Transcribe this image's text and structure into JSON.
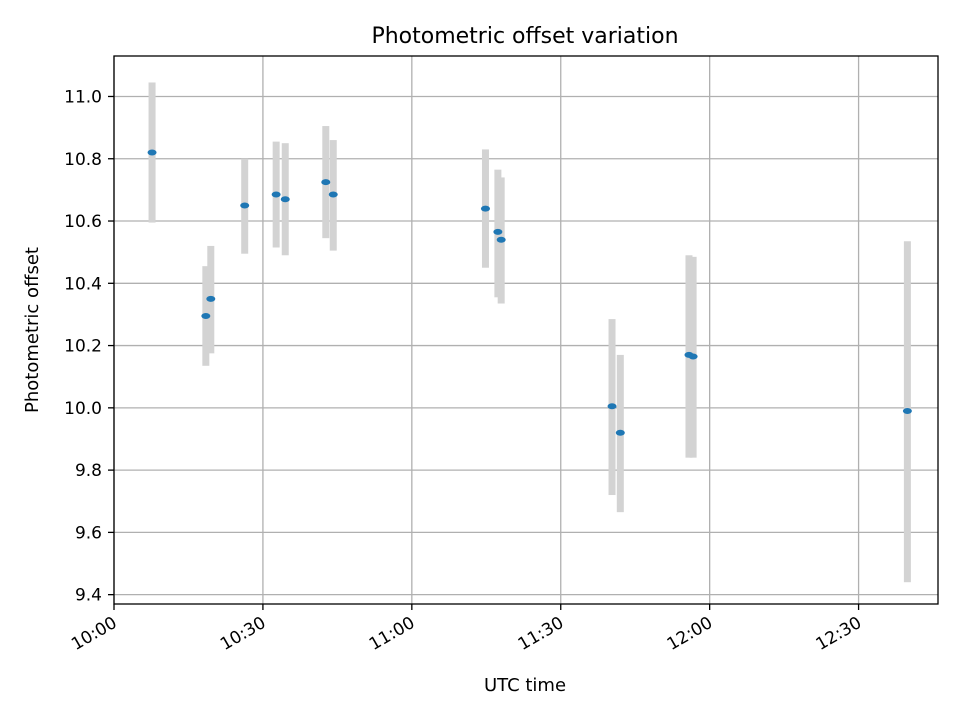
{
  "chart_data": {
    "type": "scatter",
    "title": "Photometric offset variation",
    "xlabel": "UTC time",
    "ylabel": "Photometric offset",
    "x_is_time": true,
    "xlim": [
      "10:00",
      "12:46"
    ],
    "ylim": [
      9.37,
      11.13
    ],
    "x_ticks": [
      "10:00",
      "10:30",
      "11:00",
      "11:30",
      "12:00",
      "12:30"
    ],
    "y_ticks": [
      9.4,
      9.6,
      9.8,
      10.0,
      10.2,
      10.4,
      10.6,
      10.8,
      11.0
    ],
    "grid": true,
    "point_color": "#1f77b4",
    "errorbar_color": "#d3d3d3",
    "points": [
      {
        "t": "10:07:40",
        "y": 10.82,
        "ylo": 10.595,
        "yhi": 11.045
      },
      {
        "t": "10:18:30",
        "y": 10.295,
        "ylo": 10.135,
        "yhi": 10.455
      },
      {
        "t": "10:19:30",
        "y": 10.35,
        "ylo": 10.175,
        "yhi": 10.52
      },
      {
        "t": "10:26:20",
        "y": 10.65,
        "ylo": 10.495,
        "yhi": 10.8
      },
      {
        "t": "10:32:40",
        "y": 10.685,
        "ylo": 10.515,
        "yhi": 10.855
      },
      {
        "t": "10:34:30",
        "y": 10.67,
        "ylo": 10.49,
        "yhi": 10.85
      },
      {
        "t": "10:42:40",
        "y": 10.725,
        "ylo": 10.545,
        "yhi": 10.905
      },
      {
        "t": "10:44:10",
        "y": 10.685,
        "ylo": 10.505,
        "yhi": 10.86
      },
      {
        "t": "11:14:50",
        "y": 10.64,
        "ylo": 10.45,
        "yhi": 10.83
      },
      {
        "t": "11:17:20",
        "y": 10.565,
        "ylo": 10.355,
        "yhi": 10.765
      },
      {
        "t": "11:18:00",
        "y": 10.54,
        "ylo": 10.335,
        "yhi": 10.74
      },
      {
        "t": "11:40:20",
        "y": 10.005,
        "ylo": 9.72,
        "yhi": 10.285
      },
      {
        "t": "11:42:00",
        "y": 9.92,
        "ylo": 9.665,
        "yhi": 10.17
      },
      {
        "t": "11:55:50",
        "y": 10.17,
        "ylo": 9.84,
        "yhi": 10.49
      },
      {
        "t": "11:56:40",
        "y": 10.165,
        "ylo": 9.84,
        "yhi": 10.485
      },
      {
        "t": "12:39:50",
        "y": 9.99,
        "ylo": 9.44,
        "yhi": 10.535
      }
    ]
  }
}
